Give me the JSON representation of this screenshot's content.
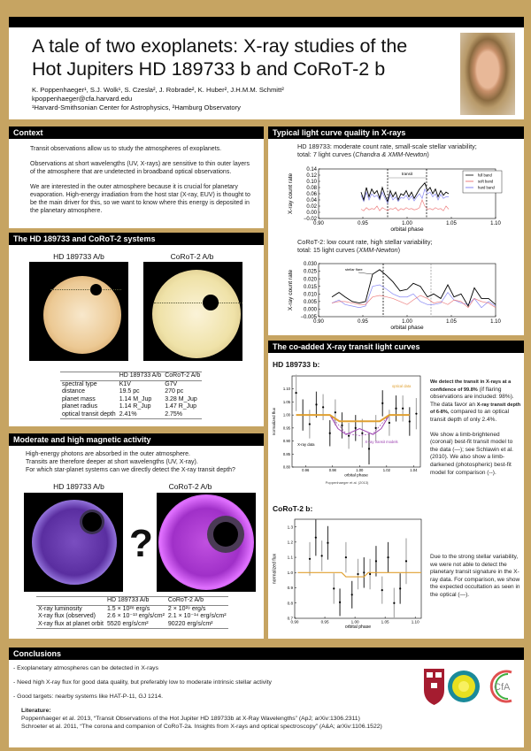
{
  "header": {
    "title_line1": "A tale of two exoplanets: X-ray studies of the",
    "title_line2": "Hot Jupiters HD 189733 b and CoRoT-2 b",
    "authors": "K. Poppenhaeger¹, S.J. Wolk¹, S. Czesla², J. Robrade², K. Huber², J.H.M.M. Schmitt²",
    "email": "kpoppenhaeger@cfa.harvard.edu",
    "affiliations": "¹Harvard-Smithsonian Center for Astrophysics, ²Hamburg Observatory"
  },
  "context": {
    "heading": "Context",
    "paragraphs": [
      "Transit observations allow us to study the atmospheres of exoplanets.",
      "Observations at short wavelengths (UV, X-rays) are sensitive to thin outer layers of the atmosphere that are undetected in broadband optical observations.",
      "We are interested in the outer atmosphere because it is crucial for planetary evaporation. High-energy irradiation from the host star (X-ray, EUV) is thought to be the main driver for this, so we want to know where this energy is deposited in the planetary atmosphere."
    ]
  },
  "systems": {
    "heading": "The HD 189733 and CoRoT-2 systems",
    "image_labels": [
      "HD 189733 A/b",
      "CoRoT-2 A/b"
    ],
    "table": {
      "columns": [
        "",
        "HD 189733 A/b",
        "CoRoT-2 A/b"
      ],
      "rows": [
        [
          "spectral type",
          "K1V",
          "G7V"
        ],
        [
          "distance",
          "19.5 pc",
          "270 pc"
        ],
        [
          "planet mass",
          "1.14 M_Jup",
          "3.28 M_Jup"
        ],
        [
          "planet radius",
          "1.14 R_Jup",
          "1.47 R_Jup"
        ],
        [
          "optical transit depth",
          "2.41%",
          "2.75%"
        ]
      ]
    }
  },
  "activity": {
    "heading": "Moderate and high magnetic activity",
    "lines": [
      "High-energy photons are absorbed in the outer atmosphere.",
      "Transits are therefore deeper at short wavelengths (UV, X-ray).",
      "For which star-planet systems can we directly detect the X-ray transit depth?"
    ],
    "image_labels": [
      "HD 189733 A/b",
      "CoRoT-2 A/b"
    ],
    "question_mark": "?",
    "table": {
      "columns": [
        "",
        "HD 189733 A/b",
        "CoRoT-2 A/b"
      ],
      "rows": [
        [
          "X-ray luminosity",
          "1.5 × 10²⁸ erg/s",
          "2 × 10²⁹ erg/s"
        ],
        [
          "X-ray flux (observed)",
          "2.6 × 10⁻¹³ erg/s/cm²",
          "2.1 × 10⁻¹⁴ erg/s/cm²"
        ],
        [
          "X-ray flux at planet orbit",
          "5520 erg/s/cm²",
          "90220 erg/s/cm²"
        ]
      ]
    }
  },
  "lightcurves": {
    "heading": "Typical light curve quality in X-rays",
    "hd_caption1": "HD 189733: moderate count rate, small-scale stellar variability;",
    "hd_caption2_pre": "total: 7 light curves (",
    "hd_caption2_em": "Chandra & XMM-Newton",
    "hd_caption2_post": ")",
    "corot_caption1": "CoRoT-2: low count rate, high stellar variability;",
    "corot_caption2_pre": "total: 15 light curves (",
    "corot_caption2_em": "XMM-Newton",
    "corot_caption2_post": ")"
  },
  "coadded": {
    "heading": "The co-added X-ray transit light curves",
    "hd_title": "HD 189733 b:",
    "hd_text1_bold": "We detect the transit in X-rays at a confidence of 99.8%",
    "hd_text1_rest": " (if flaring observations are included: 98%). The data favor an ",
    "hd_text1_bold2": "X-ray transit depth of 6-8%,",
    "hd_text1_end": " compared to an optical transit depth of only 2.4%.",
    "hd_text2": "We show a limb-brightened (coronal) best-fit transit model to the data (—); see Schlawin et al. (2010). We also show a limb-darkened (photospheric) best-fit model for comparison (--).",
    "hd_credit": "Poppenhaeger et al. (2013)",
    "corot_title": "CoRoT-2 b:",
    "corot_text": "Due to the strong stellar variability, we were not able to detect the planetary transit signature in the X-ray data. For comparison, we show the expected occultation as seen in the optical (—)."
  },
  "conclusions": {
    "heading": "Conclusions",
    "bullets": [
      "Exoplanetary atmospheres can be detected in X-rays",
      "Need high X-ray flux for good data quality, but preferably low to moderate intrinsic stellar activity",
      "Good targets: nearby systems like HAT-P-11, GJ 1214."
    ],
    "literature_heading": "Literature:",
    "references": [
      "Poppenhaeger et al. 2013, “Transit Observations of the Hot Jupiter HD 189733b at X-Ray Wavelengths” (ApJ; arXiv:1306.2311)",
      "Schroeter et al. 2011, “The corona and companion of CoRoT-2a. Insights from X-rays and optical spectroscopy” (A&A; arXiv:1106.1522)"
    ],
    "logos": [
      "Harvard shield",
      "Smithsonian sun",
      "CfA"
    ]
  },
  "colors": {
    "background": "#c6a462",
    "heading_bg": "#000000",
    "optical": "#e0a030",
    "model": "#9b3fb0",
    "full_band": "#000000",
    "soft_band": "#e86060",
    "hard_band": "#6a6af0"
  },
  "chart_data": [
    {
      "id": "hd_lc",
      "type": "line",
      "xlabel": "orbital phase",
      "ylabel": "X-ray count rate",
      "xlim": [
        0.9,
        1.1
      ],
      "ylim": [
        -0.02,
        0.14
      ],
      "xticks": [
        "0.90",
        "0.95",
        "1.00",
        "1.05",
        "1.10"
      ],
      "yticks": [
        "−0.02",
        "0.00",
        "0.02",
        "0.04",
        "0.06",
        "0.08",
        "0.10",
        "0.12",
        "0.14"
      ],
      "annotation": "transit",
      "transit_lines": [
        0.978,
        1.022
      ],
      "legend": [
        "full band",
        "soft band",
        "hard band"
      ],
      "legend_position": "top-right",
      "x": [
        0.948,
        0.951,
        0.954,
        0.957,
        0.96,
        0.963,
        0.966,
        0.969,
        0.972,
        0.975,
        0.978,
        0.981,
        0.984,
        0.987,
        0.99,
        0.993,
        0.996,
        0.999,
        1.002,
        1.005,
        1.008,
        1.011,
        1.014,
        1.017,
        1.02,
        1.023,
        1.026,
        1.029,
        1.032,
        1.035,
        1.038,
        1.041,
        1.044,
        1.047
      ],
      "series": [
        {
          "name": "full band",
          "values": [
            0.065,
            0.04,
            0.08,
            0.05,
            0.075,
            0.06,
            0.07,
            0.045,
            0.08,
            0.055,
            0.035,
            0.07,
            0.05,
            0.065,
            0.04,
            0.06,
            0.055,
            0.07,
            0.05,
            0.065,
            0.045,
            0.06,
            0.075,
            0.085,
            0.095,
            0.07,
            0.08,
            0.06,
            0.075,
            0.05,
            0.07,
            0.055,
            0.065,
            0.06
          ]
        },
        {
          "name": "soft band",
          "values": [
            0.01,
            0.005,
            0.015,
            0.008,
            0.012,
            0.01,
            0.02,
            0.005,
            0.015,
            0.01,
            0.005,
            0.012,
            0.01,
            0.015,
            0.005,
            0.012,
            0.008,
            0.015,
            0.01,
            0.012,
            0.008,
            0.01,
            0.015,
            0.04,
            0.02,
            0.01,
            0.012,
            0.008,
            0.015,
            0.01,
            0.012,
            0.005,
            0.02,
            0.01
          ]
        },
        {
          "name": "hard band",
          "values": [
            0.055,
            0.035,
            0.065,
            0.04,
            0.06,
            0.05,
            0.055,
            0.04,
            0.065,
            0.045,
            0.03,
            0.058,
            0.04,
            0.05,
            0.035,
            0.048,
            0.045,
            0.055,
            0.04,
            0.053,
            0.037,
            0.05,
            0.06,
            0.045,
            0.075,
            0.06,
            0.065,
            0.05,
            0.06,
            0.04,
            0.058,
            0.045,
            0.05,
            0.05
          ]
        }
      ]
    },
    {
      "id": "corot_lc",
      "type": "line",
      "xlabel": "orbital phase",
      "ylabel": "X-ray count rate",
      "xlim": [
        0.9,
        1.1
      ],
      "ylim": [
        -0.005,
        0.03
      ],
      "xticks": [
        "0.90",
        "0.95",
        "1.00",
        "1.05",
        "1.10"
      ],
      "yticks": [
        "−0.005",
        "0.000",
        "0.005",
        "0.010",
        "0.015",
        "0.020",
        "0.025",
        "0.030"
      ],
      "annotation": "stellar flare",
      "transit_lines": [
        0.973,
        1.027
      ],
      "x": [
        0.915,
        0.923,
        0.93,
        0.938,
        0.946,
        0.953,
        0.961,
        0.969,
        0.977,
        0.984,
        0.992,
        1.0,
        1.007,
        1.015,
        1.023,
        1.03,
        1.038,
        1.046,
        1.053,
        1.061,
        1.069,
        1.076,
        1.084,
        1.092,
        1.1
      ],
      "series": [
        {
          "values": [
            0.008,
            0.011,
            0.008,
            0.005,
            0.004,
            0.005,
            0.023,
            0.026,
            0.022,
            0.018,
            0.012,
            0.013,
            0.017,
            0.015,
            0.008,
            0.01,
            0.007,
            0.016,
            0.008,
            0.01,
            0.002,
            0.014,
            0.007,
            0.007,
            0.003
          ]
        },
        {
          "values": [
            0.004,
            0.005,
            0.005,
            0.004,
            0.003,
            0.003,
            0.008,
            0.009,
            0.008,
            0.007,
            0.005,
            0.003,
            0.006,
            0.009,
            0.007,
            0.004,
            0.005,
            0.003,
            0.006,
            0.005,
            0.001,
            0.007,
            0.005,
            0.004,
            0.001
          ]
        },
        {
          "values": [
            0.004,
            0.006,
            0.003,
            0.002,
            0.001,
            0.002,
            0.015,
            0.016,
            0.013,
            0.01,
            0.008,
            0.008,
            0.01,
            0.005,
            0.003,
            0.003,
            0.004,
            0.011,
            0.006,
            0.004,
            0.003,
            0.007,
            0.001,
            0.005,
            0.002
          ]
        }
      ]
    },
    {
      "id": "hd_co",
      "type": "scatter",
      "xlabel": "orbital phase",
      "ylabel": "normalized flux",
      "xlim": [
        0.95,
        1.045
      ],
      "ylim": [
        0.8,
        1.15
      ],
      "xticks": [
        "0.96",
        "0.98",
        "1.00",
        "1.02",
        "1.04"
      ],
      "yticks": [
        "0.80",
        "0.85",
        "0.90",
        "0.95",
        "1.00",
        "1.05",
        "1.10"
      ],
      "annotations": [
        "optical data",
        "X-ray data",
        "X-ray transit models"
      ],
      "x": [
        0.953,
        0.958,
        0.963,
        0.968,
        0.973,
        0.978,
        0.982,
        0.987,
        0.992,
        0.997,
        1.002,
        1.007,
        1.012,
        1.017,
        1.022,
        1.027,
        1.032,
        1.037,
        1.042
      ],
      "y": [
        1.085,
        1.0,
        0.965,
        1.04,
        1.03,
        0.93,
        1.01,
        0.96,
        0.92,
        0.95,
        0.93,
        0.87,
        0.95,
        1.045,
        0.97,
        1.025,
        1.025,
        0.975,
        1.005
      ],
      "err": [
        0.07,
        0.06,
        0.055,
        0.05,
        0.05,
        0.05,
        0.05,
        0.05,
        0.05,
        0.05,
        0.055,
        0.06,
        0.05,
        0.05,
        0.05,
        0.05,
        0.05,
        0.055,
        0.06
      ],
      "optical_depth": 0.024,
      "xray_depth": 0.075
    },
    {
      "id": "corot_co",
      "type": "scatter",
      "xlabel": "orbital phase",
      "ylabel": "normalized flux",
      "xlim": [
        0.9,
        1.11
      ],
      "ylim": [
        0.7,
        1.35
      ],
      "xticks": [
        "0.90",
        "0.95",
        "1.00",
        "1.05",
        "1.10"
      ],
      "yticks": [
        "0.7",
        "0.8",
        "0.9",
        "1.0",
        "1.1",
        "1.2",
        "1.3"
      ],
      "x": [
        0.925,
        0.935,
        0.945,
        0.955,
        0.965,
        0.975,
        0.985,
        0.995,
        1.005,
        1.015,
        1.025,
        1.035,
        1.045,
        1.055,
        1.065,
        1.075,
        1.085
      ],
      "y": [
        1.09,
        1.23,
        1.11,
        1.195,
        0.895,
        0.805,
        1.1,
        0.855,
        0.99,
        1.0,
        0.99,
        1.075,
        0.885,
        1.1,
        0.8,
        0.895,
        1.075
      ],
      "err": [
        0.11,
        0.12,
        0.1,
        0.11,
        0.1,
        0.09,
        0.1,
        0.09,
        0.1,
        0.1,
        0.1,
        0.1,
        0.09,
        0.1,
        0.1,
        0.1,
        0.15
      ],
      "optical_depth": 0.0275
    }
  ]
}
